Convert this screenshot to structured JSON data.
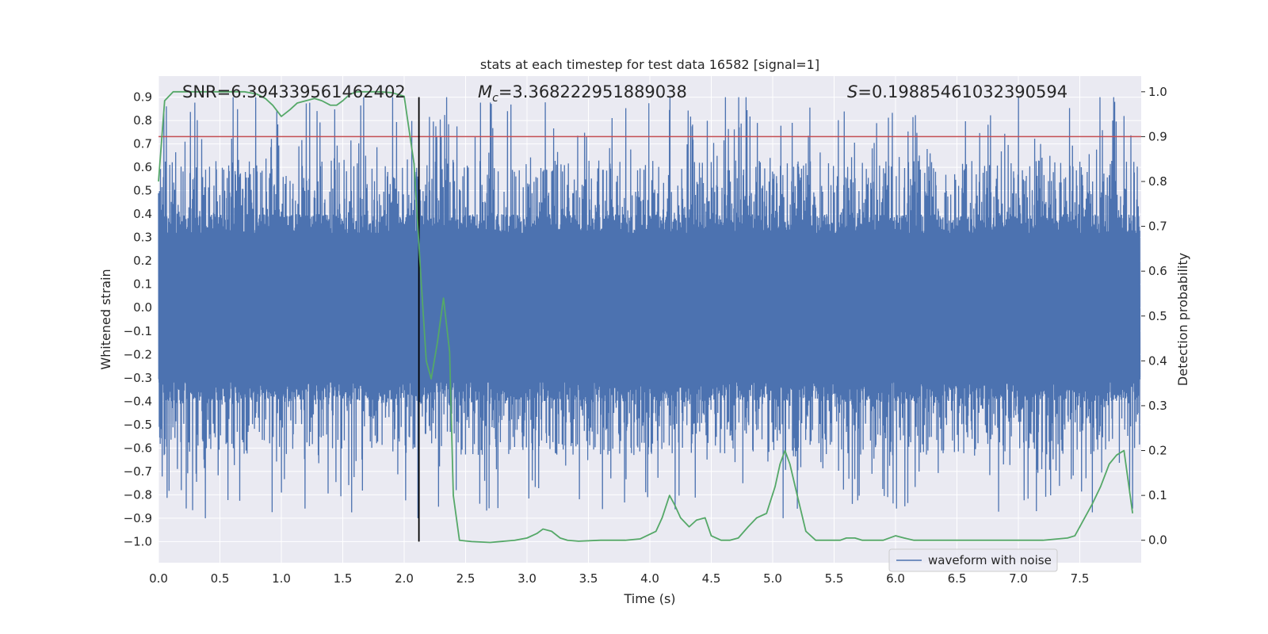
{
  "chart_data": {
    "type": "line",
    "title": "stats at each timestep for test data 16582 [signal=1]",
    "xlabel": "Time (s)",
    "ylabel": "Whitened strain",
    "y2label": "Detection probability",
    "xlim": [
      0.0,
      8.0
    ],
    "ylim": [
      -1.09,
      0.99
    ],
    "y2lim": [
      -0.05,
      1.035
    ],
    "x_ticks": [
      0.0,
      0.5,
      1.0,
      1.5,
      2.0,
      2.5,
      3.0,
      3.5,
      4.0,
      4.5,
      5.0,
      5.5,
      6.0,
      6.5,
      7.0,
      7.5
    ],
    "x_tick_labels": [
      "0.0",
      "0.5",
      "1.0",
      "1.5",
      "2.0",
      "2.5",
      "3.0",
      "3.5",
      "4.0",
      "4.5",
      "5.0",
      "5.5",
      "6.0",
      "6.5",
      "7.0",
      "7.5"
    ],
    "y_ticks": [
      0.9,
      0.8,
      0.7,
      0.6,
      0.5,
      0.4,
      0.3,
      0.2,
      0.1,
      0.0,
      -0.1,
      -0.2,
      -0.3,
      -0.4,
      -0.5,
      -0.6,
      -0.7,
      -0.8,
      -0.9,
      -1.0
    ],
    "y_tick_labels": [
      "0.9",
      "0.8",
      "0.7",
      "0.6",
      "0.5",
      "0.4",
      "0.3",
      "0.2",
      "0.1",
      "0.0",
      "−0.1",
      "−0.2",
      "−0.3",
      "−0.4",
      "−0.5",
      "−0.6",
      "−0.7",
      "−0.8",
      "−0.9",
      "−1.0"
    ],
    "y2_ticks": [
      1.0,
      0.9,
      0.8,
      0.7,
      0.6,
      0.5,
      0.4,
      0.3,
      0.2,
      0.1,
      0.0
    ],
    "y2_tick_labels": [
      "1.0",
      "0.9",
      "0.8",
      "0.7",
      "0.6",
      "0.5",
      "0.4",
      "0.3",
      "0.2",
      "0.1",
      "0.0"
    ],
    "annotations": {
      "snr": "SNR=6.394339561462402",
      "mc_symbol": "M",
      "mc_sub": "c",
      "mc_value": "=3.368222951889038",
      "s_symbol": "S",
      "s_value": "=0.19885461032390594"
    },
    "merger_time": 2.12,
    "threshold": 0.9,
    "noise": {
      "name": "waveform with noise",
      "x_start": 0.0,
      "x_end": 7.99,
      "max_abs": 0.9,
      "core_amplitude": 0.32
    },
    "series": [
      {
        "name": "detection probability",
        "axis": "right",
        "x": [
          0.0,
          0.05,
          0.12,
          0.3,
          0.5,
          0.7,
          0.8,
          0.87,
          0.93,
          1.0,
          1.07,
          1.13,
          1.2,
          1.27,
          1.33,
          1.4,
          1.45,
          1.5,
          1.56,
          1.62,
          1.7,
          1.8,
          1.9,
          2.0,
          2.08,
          2.14,
          2.18,
          2.22,
          2.27,
          2.32,
          2.37,
          2.4,
          2.45,
          2.55,
          2.7,
          2.9,
          3.0,
          3.08,
          3.13,
          3.2,
          3.27,
          3.33,
          3.42,
          3.6,
          3.8,
          3.92,
          4.05,
          4.1,
          4.16,
          4.2,
          4.25,
          4.32,
          4.38,
          4.45,
          4.5,
          4.58,
          4.65,
          4.72,
          4.8,
          4.87,
          4.95,
          5.02,
          5.06,
          5.1,
          5.14,
          5.2,
          5.27,
          5.35,
          5.45,
          5.55,
          5.6,
          5.67,
          5.73,
          5.8,
          5.9,
          6.0,
          6.07,
          6.15,
          6.2,
          6.3,
          6.5,
          7.0,
          7.2,
          7.4,
          7.46,
          7.52,
          7.6,
          7.67,
          7.74,
          7.8,
          7.86,
          7.93
        ],
        "values": [
          0.8,
          0.98,
          1.0,
          1.0,
          1.0,
          1.0,
          0.995,
          0.985,
          0.97,
          0.945,
          0.96,
          0.975,
          0.98,
          0.985,
          0.98,
          0.97,
          0.97,
          0.98,
          0.995,
          1.0,
          1.0,
          1.0,
          0.998,
          0.99,
          0.84,
          0.57,
          0.4,
          0.36,
          0.44,
          0.54,
          0.42,
          0.1,
          0.0,
          -0.003,
          -0.005,
          0.0,
          0.005,
          0.015,
          0.025,
          0.02,
          0.005,
          0.0,
          -0.002,
          0.0,
          0.0,
          0.003,
          0.02,
          0.05,
          0.1,
          0.08,
          0.05,
          0.03,
          0.045,
          0.05,
          0.01,
          0.0,
          0.0,
          0.005,
          0.03,
          0.05,
          0.06,
          0.12,
          0.17,
          0.2,
          0.17,
          0.1,
          0.02,
          0.0,
          0.0,
          0.0,
          0.005,
          0.005,
          0.0,
          0.0,
          0.0,
          0.01,
          0.005,
          0.0,
          0.0,
          0.0,
          0.0,
          0.0,
          0.0,
          0.005,
          0.01,
          0.04,
          0.08,
          0.12,
          0.17,
          0.19,
          0.2,
          0.06
        ]
      }
    ],
    "legend": {
      "label": "waveform with noise",
      "position": "lower-right"
    }
  },
  "colors": {
    "axes_bg": "#eaeaf2",
    "grid": "#ffffff",
    "noise": "#4c72b0",
    "prob": "#55a868",
    "threshold": "#c44e52",
    "merger": "#000000",
    "text": "#262626"
  }
}
